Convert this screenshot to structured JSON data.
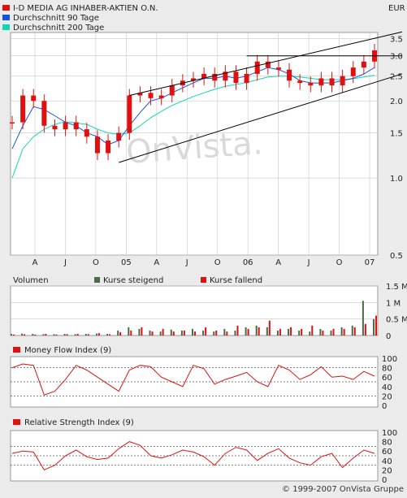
{
  "header": {
    "currency": "EUR",
    "legend": [
      {
        "label": "I-D MEDIA AG INHABER-AKTIEN O.N.",
        "color": "#e01010"
      },
      {
        "label": "Durchschnitt 90 Tage",
        "color": "#1850e0"
      },
      {
        "label": "Durchschnitt 200 Tage",
        "color": "#10d8b0"
      }
    ]
  },
  "footer": {
    "copyright": "© 1999-2007 OnVista Gruppe"
  },
  "watermark": "OnVista.",
  "colors": {
    "background": "#ebebeb",
    "plot": "#ffffff",
    "grid": "#c8c8c8",
    "rising": "#4a6a4a",
    "falling": "#e01010"
  },
  "chart_data": [
    {
      "type": "candlestick",
      "title": "I-D MEDIA AG INHABER-AKTIEN O.N.",
      "yscale": "log",
      "ylabel": "EUR",
      "ylim": [
        0.5,
        3.7
      ],
      "y_ticks": [
        "3.5",
        "3.0",
        "2.5",
        "2.0",
        "1.5",
        "1.0",
        "0.5"
      ],
      "x_ticks": [
        "A",
        "J",
        "O",
        "05",
        "A",
        "J",
        "O",
        "06",
        "A",
        "J",
        "O",
        "07"
      ],
      "grid": true,
      "x": [
        "2004-03",
        "2004-04",
        "2004-05",
        "2004-06",
        "2004-07",
        "2004-08",
        "2004-09",
        "2004-10",
        "2004-11",
        "2004-12",
        "2005-01",
        "2005-02",
        "2005-03",
        "2005-04",
        "2005-05",
        "2005-06",
        "2005-07",
        "2005-08",
        "2005-09",
        "2005-10",
        "2005-11",
        "2005-12",
        "2006-01",
        "2006-02",
        "2006-03",
        "2006-04",
        "2006-05",
        "2006-06",
        "2006-07",
        "2006-08",
        "2006-09",
        "2006-10",
        "2006-11",
        "2006-12",
        "2007-01"
      ],
      "series": [
        {
          "name": "I-D MEDIA AG INHABER-AKTIEN O.N.",
          "values": [
            1.65,
            2.1,
            2.0,
            1.6,
            1.55,
            1.65,
            1.55,
            1.45,
            1.25,
            1.4,
            1.5,
            2.1,
            2.15,
            2.05,
            2.1,
            2.3,
            2.4,
            2.45,
            2.55,
            2.4,
            2.6,
            2.35,
            2.55,
            2.85,
            2.7,
            2.65,
            2.4,
            2.35,
            2.3,
            2.45,
            2.3,
            2.5,
            2.7,
            2.85,
            3.15
          ]
        },
        {
          "name": "Durchschnitt 90 Tage",
          "values": [
            1.3,
            1.6,
            1.9,
            1.85,
            1.75,
            1.65,
            1.6,
            1.5,
            1.45,
            1.35,
            1.4,
            1.6,
            1.8,
            2.0,
            2.05,
            2.15,
            2.25,
            2.35,
            2.45,
            2.45,
            2.5,
            2.45,
            2.5,
            2.6,
            2.7,
            2.65,
            2.55,
            2.4,
            2.35,
            2.35,
            2.35,
            2.4,
            2.45,
            2.55,
            2.7
          ]
        },
        {
          "name": "Durchschnitt 200 Tage",
          "values": [
            1.0,
            1.3,
            1.45,
            1.55,
            1.62,
            1.66,
            1.64,
            1.62,
            1.55,
            1.5,
            1.48,
            1.5,
            1.6,
            1.72,
            1.82,
            1.92,
            2.0,
            2.08,
            2.15,
            2.22,
            2.28,
            2.32,
            2.36,
            2.42,
            2.48,
            2.5,
            2.5,
            2.48,
            2.45,
            2.42,
            2.42,
            2.42,
            2.44,
            2.48,
            2.52
          ]
        }
      ]
    },
    {
      "type": "bar",
      "title": "Volumen",
      "legend": [
        "Kurse steigend",
        "Kurse fallend"
      ],
      "y_ticks": [
        "1.5 M",
        "1 M",
        "0.5 M",
        "0"
      ],
      "ylim": [
        0,
        1.5
      ],
      "x": [
        "2004-03",
        "2004-04",
        "2004-05",
        "2004-06",
        "2004-07",
        "2004-08",
        "2004-09",
        "2004-10",
        "2004-11",
        "2004-12",
        "2005-01",
        "2005-02",
        "2005-03",
        "2005-04",
        "2005-05",
        "2005-06",
        "2005-07",
        "2005-08",
        "2005-09",
        "2005-10",
        "2005-11",
        "2005-12",
        "2006-01",
        "2006-02",
        "2006-03",
        "2006-04",
        "2006-05",
        "2006-06",
        "2006-07",
        "2006-08",
        "2006-09",
        "2006-10",
        "2006-11",
        "2006-12",
        "2007-01"
      ],
      "series": [
        {
          "name": "Kurse steigend",
          "values": [
            0.05,
            0.06,
            0.05,
            0.04,
            0.04,
            0.05,
            0.04,
            0.05,
            0.06,
            0.05,
            0.15,
            0.25,
            0.2,
            0.15,
            0.12,
            0.18,
            0.15,
            0.2,
            0.15,
            0.12,
            0.2,
            0.15,
            0.25,
            0.3,
            0.25,
            0.15,
            0.2,
            0.15,
            0.12,
            0.2,
            0.15,
            0.25,
            0.3,
            1.05,
            0.5
          ]
        },
        {
          "name": "Kurse fallend",
          "values": [
            0.03,
            0.04,
            0.03,
            0.05,
            0.03,
            0.04,
            0.05,
            0.04,
            0.07,
            0.04,
            0.1,
            0.15,
            0.25,
            0.12,
            0.2,
            0.12,
            0.15,
            0.12,
            0.25,
            0.15,
            0.12,
            0.3,
            0.2,
            0.25,
            0.45,
            0.2,
            0.25,
            0.2,
            0.3,
            0.15,
            0.2,
            0.2,
            0.25,
            0.35,
            0.6
          ]
        }
      ]
    },
    {
      "type": "line",
      "title": "Money Flow Index (9)",
      "y_ticks": [
        "100",
        "80",
        "60",
        "40",
        "20",
        "0"
      ],
      "ylim": [
        0,
        100
      ],
      "x": [
        "2004-03",
        "2004-04",
        "2004-05",
        "2004-06",
        "2004-07",
        "2004-08",
        "2004-09",
        "2004-10",
        "2004-11",
        "2004-12",
        "2005-01",
        "2005-02",
        "2005-03",
        "2005-04",
        "2005-05",
        "2005-06",
        "2005-07",
        "2005-08",
        "2005-09",
        "2005-10",
        "2005-11",
        "2005-12",
        "2006-01",
        "2006-02",
        "2006-03",
        "2006-04",
        "2006-05",
        "2006-06",
        "2006-07",
        "2006-08",
        "2006-09",
        "2006-10",
        "2006-11",
        "2006-12",
        "2007-01"
      ],
      "series": [
        {
          "name": "Money Flow Index (9)",
          "values": [
            80,
            88,
            85,
            22,
            30,
            55,
            85,
            75,
            60,
            45,
            30,
            75,
            85,
            82,
            60,
            50,
            40,
            85,
            78,
            45,
            55,
            62,
            70,
            50,
            40,
            85,
            75,
            55,
            65,
            82,
            60,
            62,
            55,
            72,
            62
          ]
        }
      ]
    },
    {
      "type": "line",
      "title": "Relative Strength Index (9)",
      "y_ticks": [
        "100",
        "80",
        "60",
        "40",
        "20",
        "0"
      ],
      "ylim": [
        0,
        100
      ],
      "x": [
        "2004-03",
        "2004-04",
        "2004-05",
        "2004-06",
        "2004-07",
        "2004-08",
        "2004-09",
        "2004-10",
        "2004-11",
        "2004-12",
        "2005-01",
        "2005-02",
        "2005-03",
        "2005-04",
        "2005-05",
        "2005-06",
        "2005-07",
        "2005-08",
        "2005-09",
        "2005-10",
        "2005-11",
        "2005-12",
        "2006-01",
        "2006-02",
        "2006-03",
        "2006-04",
        "2006-05",
        "2006-06",
        "2006-07",
        "2006-08",
        "2006-09",
        "2006-10",
        "2006-11",
        "2006-12",
        "2007-01"
      ],
      "series": [
        {
          "name": "Relative Strength Index (9)",
          "values": [
            55,
            60,
            58,
            20,
            30,
            50,
            62,
            48,
            42,
            45,
            65,
            80,
            72,
            50,
            45,
            52,
            62,
            58,
            48,
            30,
            55,
            68,
            62,
            40,
            55,
            65,
            45,
            35,
            30,
            48,
            55,
            25,
            45,
            62,
            55
          ]
        }
      ]
    }
  ]
}
